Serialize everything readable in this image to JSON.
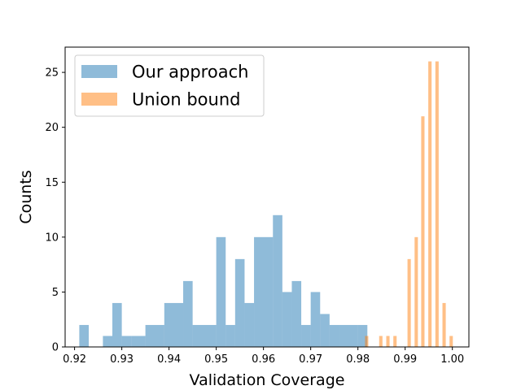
{
  "chart_data": {
    "type": "bar",
    "title": "",
    "xlabel": "Validation Coverage",
    "ylabel": "Counts",
    "xlim": [
      0.918,
      1.0035
    ],
    "ylim": [
      0,
      27.3
    ],
    "x_ticks": [
      0.92,
      0.93,
      0.94,
      0.95,
      0.96,
      0.97,
      0.98,
      0.99,
      1.0
    ],
    "x_tick_labels": [
      "0.92",
      "0.93",
      "0.94",
      "0.95",
      "0.96",
      "0.97",
      "0.98",
      "0.99",
      "1.00"
    ],
    "y_ticks": [
      0,
      5,
      10,
      15,
      20,
      25
    ],
    "y_tick_labels": [
      "0",
      "5",
      "10",
      "15",
      "20",
      "25"
    ],
    "grid": false,
    "legend_position": "top-left",
    "series": [
      {
        "name": "Our approach",
        "color": "#1f77b4",
        "opacity": 0.5,
        "bins": [
          {
            "x0": 0.921,
            "x1": 0.923,
            "count": 2
          },
          {
            "x0": 0.926,
            "x1": 0.928,
            "count": 1
          },
          {
            "x0": 0.928,
            "x1": 0.93,
            "count": 4
          },
          {
            "x0": 0.93,
            "x1": 0.932,
            "count": 1
          },
          {
            "x0": 0.932,
            "x1": 0.935,
            "count": 1
          },
          {
            "x0": 0.935,
            "x1": 0.939,
            "count": 2
          },
          {
            "x0": 0.939,
            "x1": 0.943,
            "count": 4
          },
          {
            "x0": 0.943,
            "x1": 0.945,
            "count": 6
          },
          {
            "x0": 0.945,
            "x1": 0.95,
            "count": 2
          },
          {
            "x0": 0.95,
            "x1": 0.952,
            "count": 10
          },
          {
            "x0": 0.952,
            "x1": 0.954,
            "count": 2
          },
          {
            "x0": 0.954,
            "x1": 0.956,
            "count": 8
          },
          {
            "x0": 0.956,
            "x1": 0.958,
            "count": 4
          },
          {
            "x0": 0.958,
            "x1": 0.962,
            "count": 10
          },
          {
            "x0": 0.962,
            "x1": 0.964,
            "count": 12
          },
          {
            "x0": 0.964,
            "x1": 0.966,
            "count": 5
          },
          {
            "x0": 0.966,
            "x1": 0.968,
            "count": 6
          },
          {
            "x0": 0.968,
            "x1": 0.97,
            "count": 2
          },
          {
            "x0": 0.97,
            "x1": 0.972,
            "count": 5
          },
          {
            "x0": 0.972,
            "x1": 0.974,
            "count": 3
          },
          {
            "x0": 0.974,
            "x1": 0.976,
            "count": 2
          },
          {
            "x0": 0.976,
            "x1": 0.98,
            "count": 2
          },
          {
            "x0": 0.98,
            "x1": 0.982,
            "count": 2
          }
        ]
      },
      {
        "name": "Union bound",
        "color": "#ff7f0e",
        "opacity": 0.5,
        "bins": [
          {
            "x0": 0.9815,
            "x1": 0.9822,
            "count": 1
          },
          {
            "x0": 0.9845,
            "x1": 0.9852,
            "count": 1
          },
          {
            "x0": 0.986,
            "x1": 0.9867,
            "count": 1
          },
          {
            "x0": 0.9875,
            "x1": 0.9882,
            "count": 1
          },
          {
            "x0": 0.9905,
            "x1": 0.9912,
            "count": 8
          },
          {
            "x0": 0.992,
            "x1": 0.9927,
            "count": 10
          },
          {
            "x0": 0.9934,
            "x1": 0.9941,
            "count": 21
          },
          {
            "x0": 0.9949,
            "x1": 0.9956,
            "count": 26
          },
          {
            "x0": 0.9964,
            "x1": 0.9971,
            "count": 26
          },
          {
            "x0": 0.9979,
            "x1": 0.9986,
            "count": 4
          },
          {
            "x0": 0.9994,
            "x1": 1.0001,
            "count": 1
          }
        ]
      }
    ]
  }
}
